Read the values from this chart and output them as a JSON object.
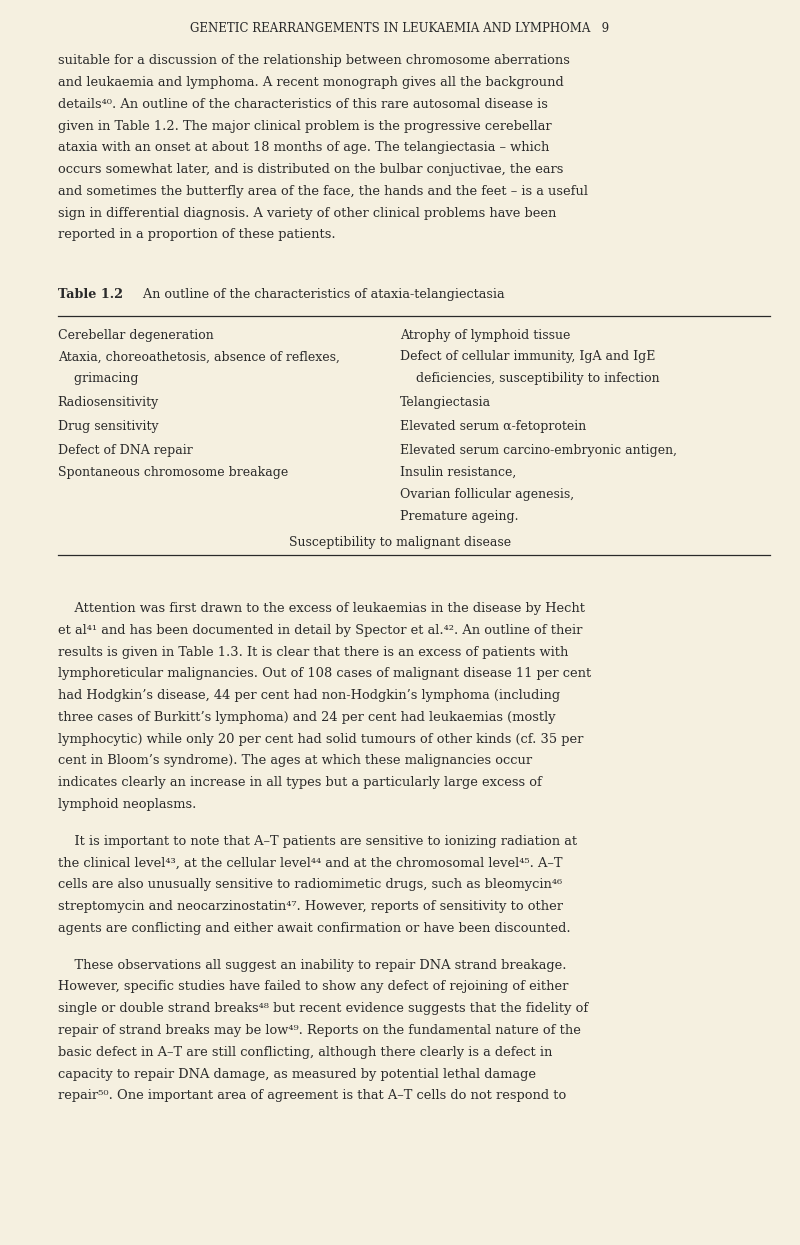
{
  "bg_color": "#f5f0e0",
  "text_color": "#2a2a2a",
  "page_width": 8.0,
  "page_height": 12.45,
  "header": "GENETIC REARRANGEMENTS IN LEUKAEMIA AND LYMPHOMA   9",
  "paragraph1_lines": [
    "suitable for a discussion of the relationship between chromosome aberrations",
    "and leukaemia and lymphoma. A recent monograph gives all the background",
    "details⁴⁰. An outline of the characteristics of this rare autosomal disease is",
    "given in Table 1.2. The major clinical problem is the progressive cerebellar",
    "ataxia with an onset at about 18 months of age. The telangiectasia – which",
    "occurs somewhat later, and is distributed on the bulbar conjuctivae, the ears",
    "and sometimes the butterfly area of the face, the hands and the feet – is a useful",
    "sign in differential diagnosis. A variety of other clinical problems have been",
    "reported in a proportion of these patients."
  ],
  "table_title_bold": "Table 1.2",
  "table_title_normal": "   An outline of the characteristics of ataxia-telangiectasia",
  "table_col1_rows": [
    "Cerebellar degeneration",
    "Ataxia, choreoathetosis, absence of reflexes,",
    "    grimacing",
    "Radiosensitivity",
    "Drug sensitivity",
    "Defect of DNA repair",
    "Spontaneous chromosome breakage",
    "",
    "Susceptibility to malignant disease"
  ],
  "table_col2_rows": [
    "Atrophy of lymphoid tissue",
    "Defect of cellular immunity, IgA and IgE",
    "    deficiencies, susceptibility to infection",
    "Telangiectasia",
    "Elevated serum α-fetoprotein",
    "Elevated serum carcino-embryonic antigen,",
    "Insulin resistance,",
    "Ovarian follicular agenesis,",
    "Premature ageing."
  ],
  "paragraph2_lines": [
    "    Attention was first drawn to the excess of leukaemias in the disease by Hecht",
    "et al⁴¹ and has been documented in detail by Spector et al.⁴². An outline of their",
    "results is given in Table 1.3. It is clear that there is an excess of patients with",
    "lymphoreticular malignancies. Out of 108 cases of malignant disease 11 per cent",
    "had Hodgkin’s disease, 44 per cent had non-Hodgkin’s lymphoma (including",
    "three cases of Burkitt’s lymphoma) and 24 per cent had leukaemias (mostly",
    "lymphocytic) while only 20 per cent had solid tumours of other kinds (cf. 35 per",
    "cent in Bloom’s syndrome). The ages at which these malignancies occur",
    "indicates clearly an increase in all types but a particularly large excess of",
    "lymphoid neoplasms."
  ],
  "paragraph3_lines": [
    "    It is important to note that A–T patients are sensitive to ionizing radiation at",
    "the clinical level⁴³, at the cellular level⁴⁴ and at the chromosomal level⁴⁵. A–T",
    "cells are also unusually sensitive to radiomimetic drugs, such as bleomycin⁴⁶",
    "streptomycin and neocarzinostatin⁴⁷. However, reports of sensitivity to other",
    "agents are conflicting and either await confirmation or have been discounted."
  ],
  "paragraph4_lines": [
    "    These observations all suggest an inability to repair DNA strand breakage.",
    "However, specific studies have failed to show any defect of rejoining of either",
    "single or double strand breaks⁴⁸ but recent evidence suggests that the fidelity of",
    "repair of strand breaks may be low⁴⁹. Reports on the fundamental nature of the",
    "basic defect in A–T are still conflicting, although there clearly is a defect in",
    "capacity to repair DNA damage, as measured by potential lethal damage",
    "repair⁵⁰. One important area of agreement is that A–T cells do not respond to"
  ]
}
